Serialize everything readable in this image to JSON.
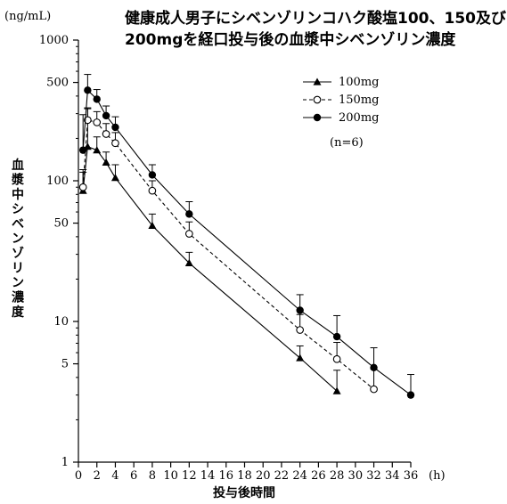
{
  "chart_data": {
    "type": "line",
    "title_line1": "健康成人男子にシベンゾリンコハク酸塩100、150及び",
    "title_line2": "200mgを経口投与後の血漿中シベンゾリン濃度",
    "y_unit": "(ng/mL)",
    "ylabel": "血漿中シベンゾリン濃度",
    "xlabel": "投与後時間",
    "x_unit": "(h)",
    "yscale": "log",
    "ylim": [
      1,
      1000
    ],
    "xlim": [
      0,
      36
    ],
    "y_ticks": [
      1,
      5,
      10,
      50,
      100,
      500,
      1000
    ],
    "x_ticks": [
      0,
      2,
      4,
      6,
      8,
      10,
      12,
      14,
      16,
      18,
      20,
      22,
      24,
      26,
      28,
      30,
      32,
      34,
      36
    ],
    "n_note": "(n=6)",
    "series": [
      {
        "name": "100mg",
        "marker": "triangle",
        "line": "solid",
        "points": [
          {
            "x": 0.5,
            "y": 85,
            "err": 30
          },
          {
            "x": 1,
            "y": 175,
            "err": 150
          },
          {
            "x": 2,
            "y": 165,
            "err": 40
          },
          {
            "x": 3,
            "y": 135,
            "err": 25
          },
          {
            "x": 4,
            "y": 105,
            "err": 25
          },
          {
            "x": 8,
            "y": 48,
            "err": 10
          },
          {
            "x": 12,
            "y": 26,
            "err": 5
          },
          {
            "x": 24,
            "y": 5.5,
            "err": 1.2
          },
          {
            "x": 28,
            "y": 3.2,
            "err": 1.3
          }
        ]
      },
      {
        "name": "150mg",
        "marker": "open-circle",
        "line": "dashed",
        "points": [
          {
            "x": 0.5,
            "y": 90,
            "err": 30
          },
          {
            "x": 1,
            "y": 270,
            "err": 60
          },
          {
            "x": 2,
            "y": 260,
            "err": 50
          },
          {
            "x": 3,
            "y": 215,
            "err": 40
          },
          {
            "x": 4,
            "y": 185,
            "err": 35
          },
          {
            "x": 8,
            "y": 85,
            "err": 15
          },
          {
            "x": 12,
            "y": 42,
            "err": 9
          },
          {
            "x": 24,
            "y": 8.7,
            "err": 2.5
          },
          {
            "x": 28,
            "y": 5.4,
            "err": 1.7
          },
          {
            "x": 32,
            "y": 3.3,
            "err": 1.3
          }
        ]
      },
      {
        "name": "200mg",
        "marker": "filled-circle",
        "line": "solid",
        "points": [
          {
            "x": 0.5,
            "y": 165,
            "err": 130
          },
          {
            "x": 1,
            "y": 440,
            "err": 130
          },
          {
            "x": 2,
            "y": 380,
            "err": 65
          },
          {
            "x": 3,
            "y": 290,
            "err": 50
          },
          {
            "x": 4,
            "y": 240,
            "err": 45
          },
          {
            "x": 8,
            "y": 110,
            "err": 20
          },
          {
            "x": 12,
            "y": 58,
            "err": 13
          },
          {
            "x": 24,
            "y": 12,
            "err": 3.5
          },
          {
            "x": 28,
            "y": 7.8,
            "err": 3.2
          },
          {
            "x": 32,
            "y": 4.7,
            "err": 1.8
          },
          {
            "x": 36,
            "y": 3.0,
            "err": 1.2
          }
        ]
      }
    ]
  }
}
